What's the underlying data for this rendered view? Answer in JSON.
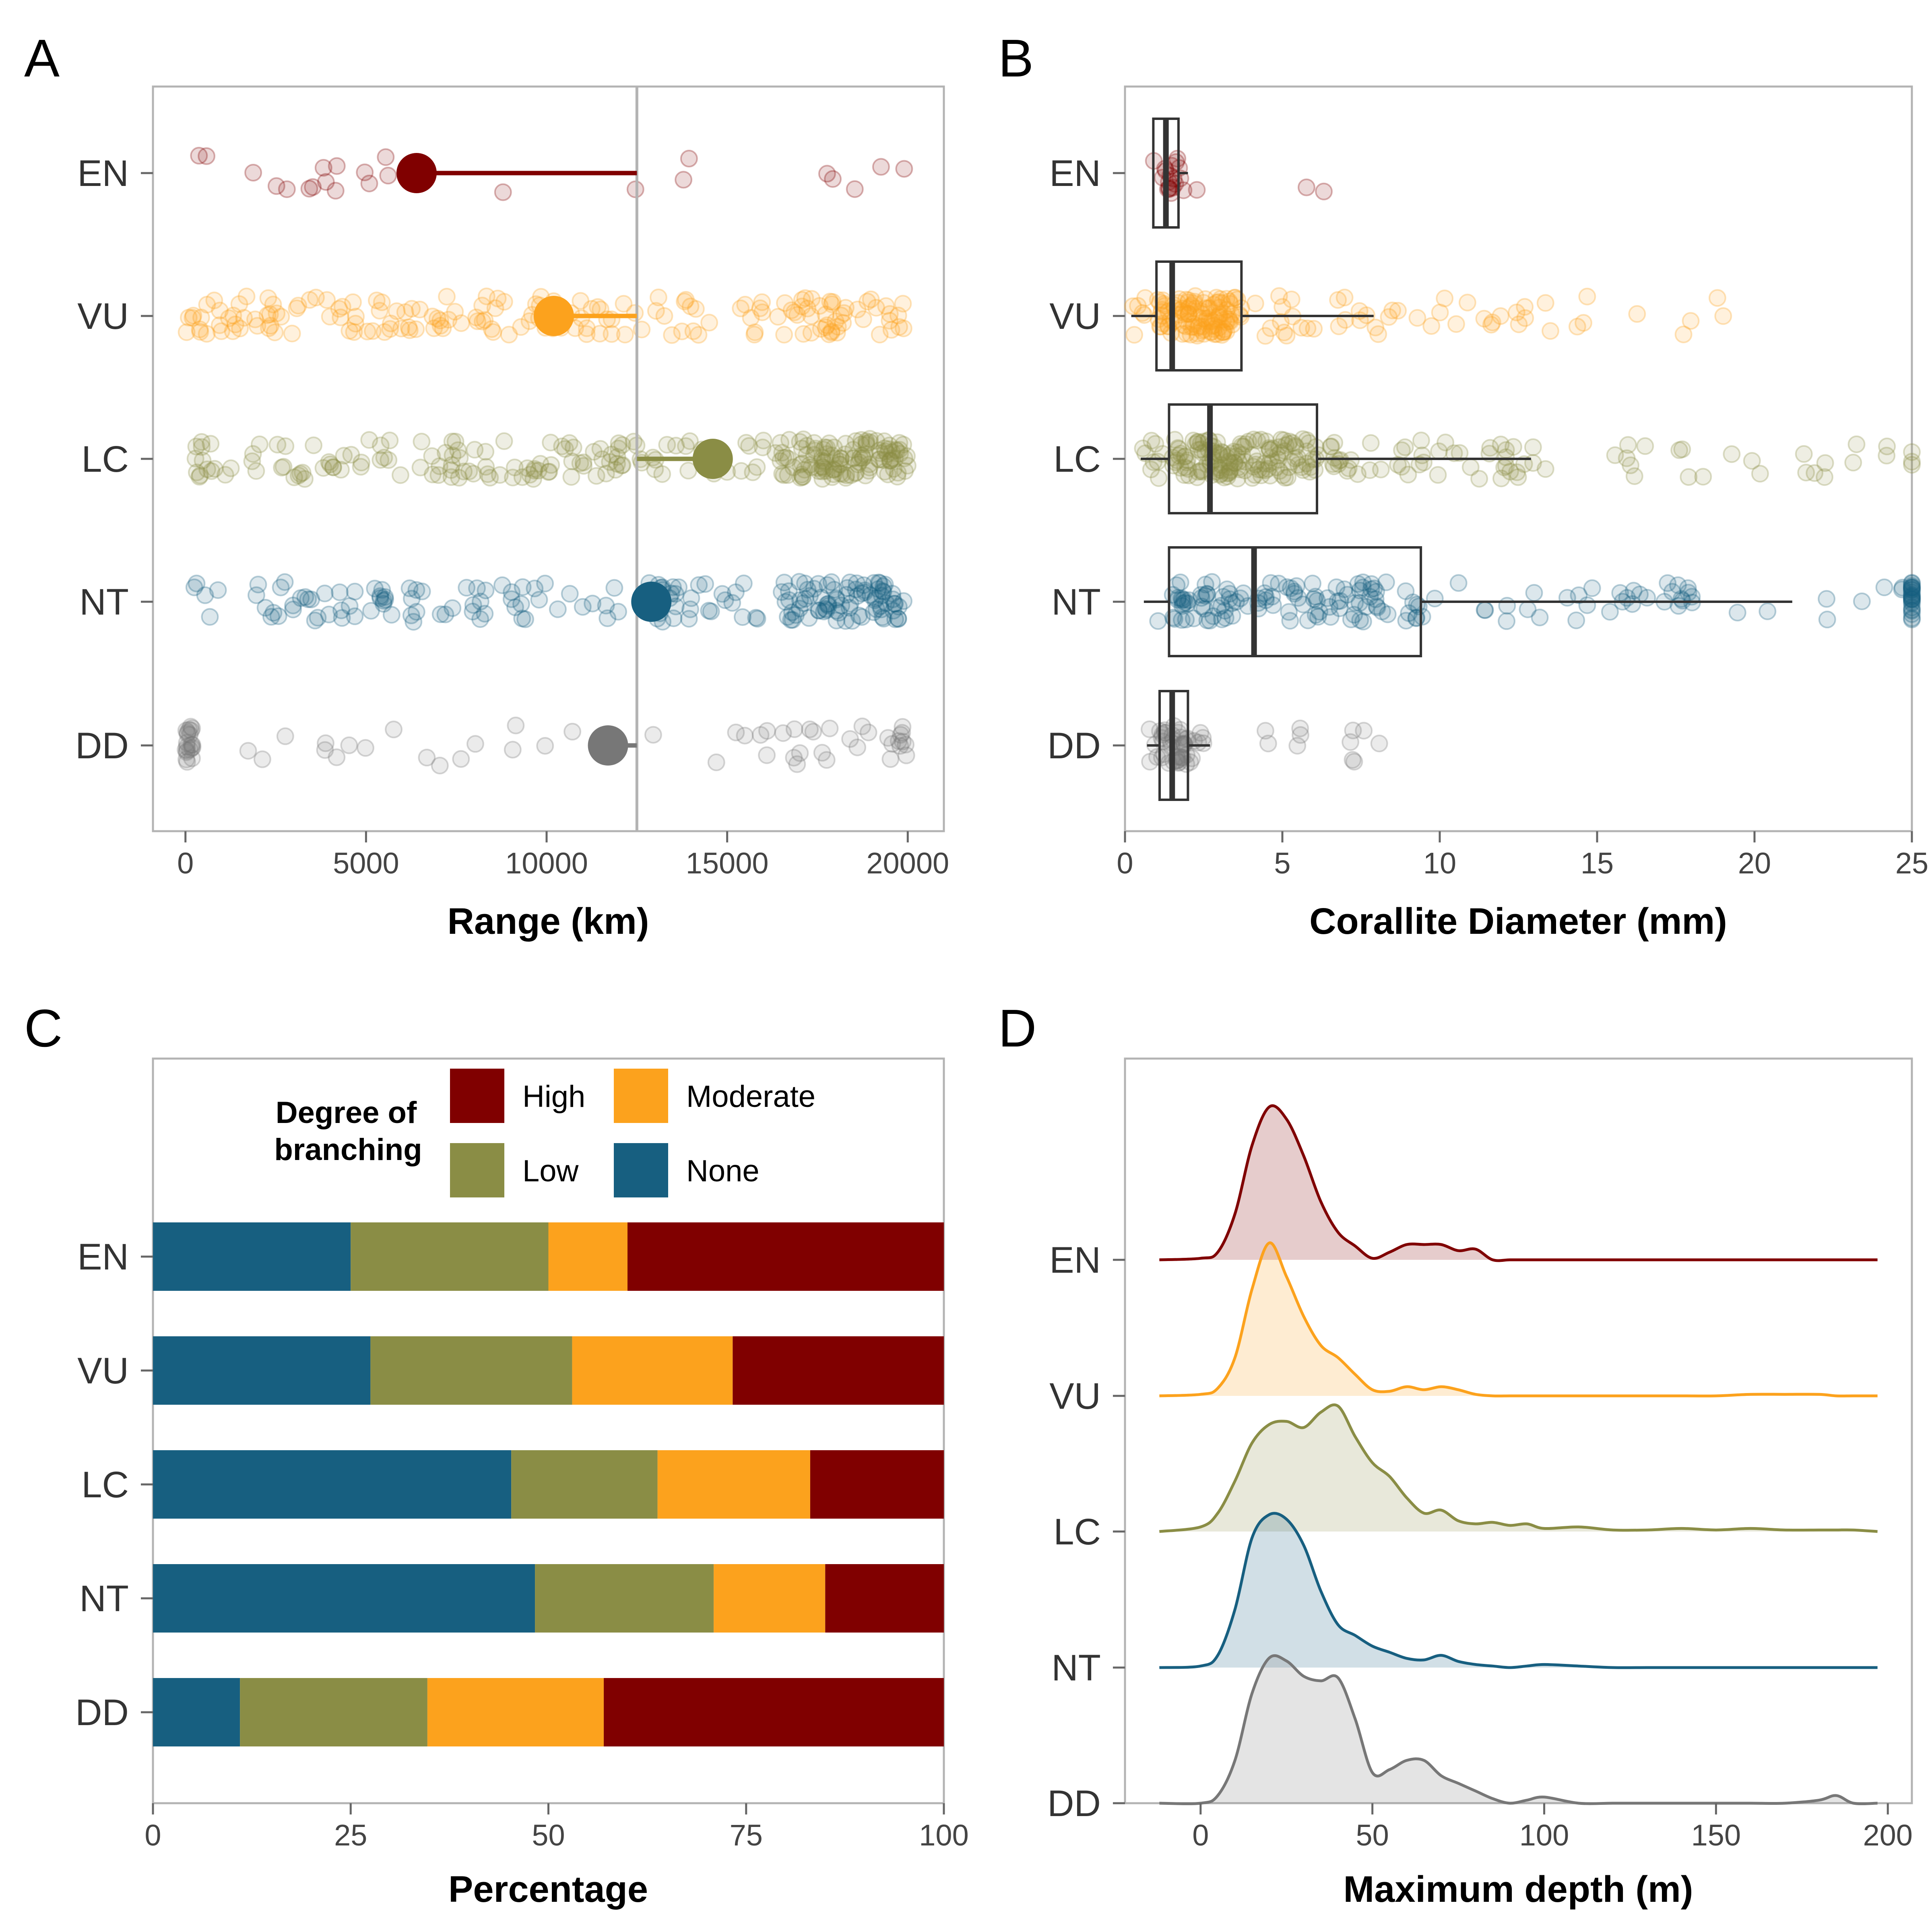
{
  "chart_data": [
    {
      "panel": "A",
      "type": "scatter",
      "xlabel": "Range (km)",
      "xlim": [
        -900,
        21000
      ],
      "xticks": [
        "0",
        "5000",
        "10000",
        "15000",
        "20000"
      ],
      "categories": [
        "EN",
        "VU",
        "LC",
        "NT",
        "DD"
      ],
      "colors": {
        "EN": "#800000",
        "VU": "#FCA21D",
        "LC": "#8A8D45",
        "NT": "#175F80",
        "DD": "#777777"
      },
      "reference_line": 12500,
      "means": {
        "EN": 6400,
        "VU": 10200,
        "LC": 14600,
        "NT": 12900,
        "DD": 11700
      },
      "points_approx_count": {
        "EN": 24,
        "VU": 180,
        "LC": 260,
        "NT": 190,
        "DD": 70
      }
    },
    {
      "panel": "B",
      "type": "box",
      "xlabel": "Corallite Diameter (mm)",
      "xlim": [
        0,
        25
      ],
      "xticks": [
        "0",
        "5",
        "10",
        "15",
        "20",
        "25"
      ],
      "categories": [
        "EN",
        "VU",
        "LC",
        "NT",
        "DD"
      ],
      "boxes": [
        {
          "name": "EN",
          "whisker_low": 0.9,
          "q1": 0.9,
          "median": 1.3,
          "q3": 1.7,
          "whisker_high": 2.0
        },
        {
          "name": "VU",
          "whisker_low": 0.2,
          "q1": 1.0,
          "median": 1.5,
          "q3": 3.7,
          "whisker_high": 7.9
        },
        {
          "name": "LC",
          "whisker_low": 0.5,
          "q1": 1.4,
          "median": 2.7,
          "q3": 6.1,
          "whisker_high": 12.9
        },
        {
          "name": "NT",
          "whisker_low": 0.6,
          "q1": 1.4,
          "median": 4.1,
          "q3": 9.4,
          "whisker_high": 21.2
        },
        {
          "name": "DD",
          "whisker_low": 0.7,
          "q1": 1.1,
          "median": 1.5,
          "q3": 2.0,
          "whisker_high": 2.7
        }
      ]
    },
    {
      "panel": "C",
      "type": "bar",
      "stacked": true,
      "orientation": "horizontal",
      "xlabel": "Percentage",
      "xlim": [
        0,
        100
      ],
      "xticks": [
        "0",
        "25",
        "50",
        "75",
        "100"
      ],
      "categories": [
        "EN",
        "VU",
        "LC",
        "NT",
        "DD"
      ],
      "legend": {
        "title_line1": "Degree of",
        "title_line2": "branching",
        "placement": "top"
      },
      "series": [
        {
          "name": "None",
          "color": "#175F80",
          "values": [
            25,
            27.5,
            45.3,
            48.3,
            11
          ]
        },
        {
          "name": "Low",
          "color": "#8A8D45",
          "values": [
            25,
            25.5,
            18.5,
            22.6,
            23.7
          ]
        },
        {
          "name": "Moderate",
          "color": "#FCA21D",
          "values": [
            10,
            20.3,
            19.3,
            14.1,
            22.3
          ]
        },
        {
          "name": "High",
          "color": "#800000",
          "values": [
            40,
            26.7,
            16.9,
            15,
            43
          ]
        }
      ],
      "legend_order": [
        "High",
        "Moderate",
        "Low",
        "None"
      ]
    },
    {
      "panel": "D",
      "type": "area",
      "subtype": "ridgeline",
      "xlabel": "Maximum depth (m)",
      "xlim": [
        -22,
        207
      ],
      "xticks": [
        "0",
        "50",
        "100",
        "150",
        "200"
      ],
      "categories": [
        "EN",
        "VU",
        "LC",
        "NT",
        "DD"
      ],
      "x": [
        -12,
        0,
        5,
        10,
        15,
        20,
        25,
        30,
        35,
        40,
        45,
        50,
        55,
        60,
        65,
        70,
        75,
        80,
        85,
        90,
        95,
        100,
        110,
        120,
        130,
        140,
        150,
        160,
        170,
        180,
        185,
        190,
        197
      ],
      "series": [
        {
          "name": "EN",
          "color": "#800000",
          "values": [
            0,
            0.01,
            0.05,
            0.3,
            0.75,
            1.0,
            0.92,
            0.68,
            0.38,
            0.18,
            0.09,
            0.01,
            0.05,
            0.1,
            0.1,
            0.1,
            0.06,
            0.07,
            0.0,
            0,
            0,
            0,
            0,
            0,
            0,
            0,
            0,
            0,
            0,
            0,
            0,
            0,
            0
          ]
        },
        {
          "name": "VU",
          "color": "#FCA21D",
          "values": [
            0,
            0.01,
            0.05,
            0.25,
            0.7,
            1.0,
            0.78,
            0.52,
            0.33,
            0.25,
            0.14,
            0.04,
            0.03,
            0.06,
            0.04,
            0.06,
            0.04,
            0.01,
            0,
            0,
            0,
            0,
            0,
            0,
            0,
            0,
            0,
            0.01,
            0.01,
            0.01,
            0,
            0,
            0
          ]
        },
        {
          "name": "LC",
          "color": "#8A8D45",
          "values": [
            0,
            0.03,
            0.12,
            0.33,
            0.58,
            0.7,
            0.72,
            0.68,
            0.78,
            0.82,
            0.62,
            0.45,
            0.36,
            0.22,
            0.12,
            0.14,
            0.07,
            0.05,
            0.06,
            0.04,
            0.05,
            0.02,
            0.03,
            0.01,
            0.01,
            0.02,
            0.01,
            0.02,
            0.01,
            0.01,
            0.01,
            0.01,
            0
          ]
        },
        {
          "name": "NT",
          "color": "#175F80",
          "values": [
            0,
            0.01,
            0.08,
            0.38,
            0.85,
            1.0,
            0.97,
            0.8,
            0.5,
            0.28,
            0.21,
            0.14,
            0.1,
            0.06,
            0.05,
            0.08,
            0.04,
            0.02,
            0.01,
            0.0,
            0.01,
            0.02,
            0.01,
            0,
            0,
            0,
            0,
            0,
            0,
            0,
            0,
            0,
            0
          ]
        },
        {
          "name": "DD",
          "color": "#777777",
          "values": [
            0,
            0.0,
            0.05,
            0.28,
            0.72,
            0.95,
            0.93,
            0.83,
            0.8,
            0.82,
            0.55,
            0.2,
            0.22,
            0.28,
            0.28,
            0.18,
            0.13,
            0.08,
            0.03,
            0.0,
            0.02,
            0.04,
            0.0,
            0,
            0,
            0,
            0,
            0,
            0,
            0.02,
            0.05,
            0.0,
            0
          ]
        }
      ]
    }
  ],
  "panels": {
    "A": {
      "letter": "A"
    },
    "B": {
      "letter": "B"
    },
    "C": {
      "letter": "C"
    },
    "D": {
      "letter": "D"
    }
  }
}
